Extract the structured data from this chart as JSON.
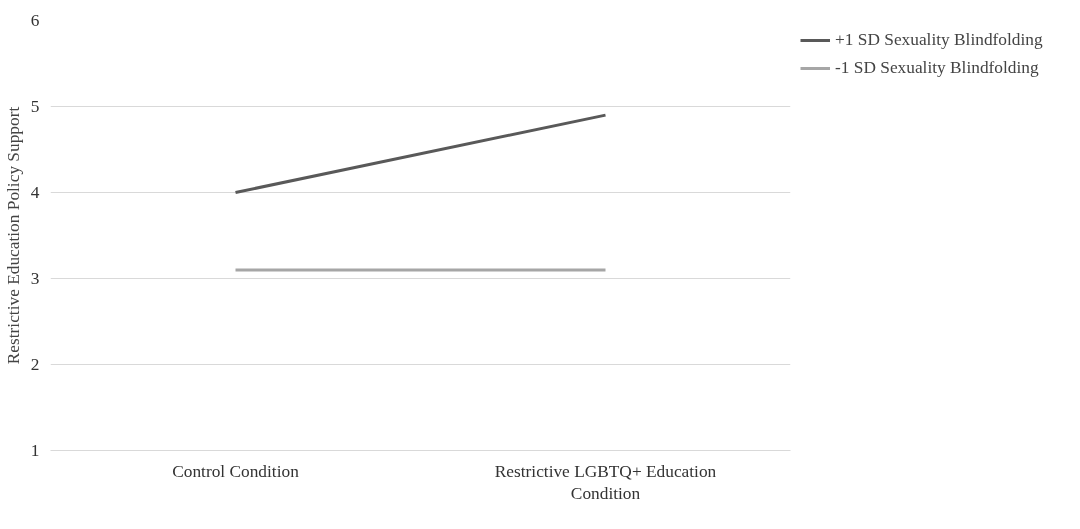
{
  "chart_data": {
    "type": "line",
    "ylabel": "Restrictive Education Policy Support",
    "categories": [
      "Control Condition",
      "Restrictive LGBTQ+ Education Condition"
    ],
    "series": [
      {
        "name": "+1 SD Sexuality Blindfolding",
        "color": "#595959",
        "values": [
          4.0,
          4.9
        ]
      },
      {
        "name": "-1 SD Sexuality Blindfolding",
        "color": "#a6a6a6",
        "values": [
          3.1,
          3.1
        ]
      }
    ],
    "ylim": [
      1,
      6
    ],
    "yticks": [
      1,
      2,
      3,
      4,
      5,
      6
    ],
    "grid": "y",
    "legend": "top right",
    "marker": "none",
    "line_style": "solid"
  }
}
